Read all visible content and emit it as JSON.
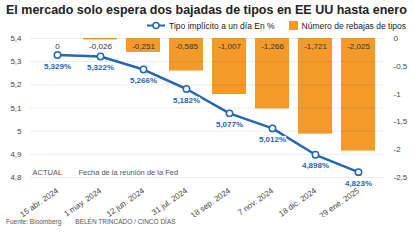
{
  "chart_data": {
    "type": "bar",
    "title": "El mercado solo espera dos bajadas de tipos en EE UU hasta enero",
    "categories": [
      "15 abr. 2024",
      "1 may. 2024",
      "12 jun. 2024",
      "31 jul. 2024",
      "18 sep. 2024",
      "7 nov. 2024",
      "18 dic. 2024",
      "29 ene. 2025"
    ],
    "x_label": "Fecha de la reunión de la Fed",
    "annotations": [
      "ACTUAL"
    ],
    "source": "Fuente: Bloomberg",
    "credit": "BELÉN TRINCADO / CINCO DÍAS",
    "legend": "top",
    "grid": true,
    "data_labels": true,
    "series": [
      {
        "name": "Tipo implícito a un día En %",
        "type": "line",
        "color": "#2467b3",
        "marker": "circle",
        "values": [
          5.329,
          5.322,
          5.266,
          5.182,
          5.077,
          5.012,
          4.898,
          4.823
        ],
        "value_labels": [
          "5,329%",
          "5,322%",
          "5,266%",
          "5,182%",
          "5,077%",
          "5,012%",
          "4,898%",
          "4,823%"
        ]
      },
      {
        "name": "Número de rebajas de tipos",
        "type": "bar",
        "axis": "y2",
        "color": "#f39a2b",
        "values": [
          0,
          -0.026,
          -0.251,
          -0.585,
          -1.007,
          -1.266,
          -1.721,
          -2.025
        ],
        "value_labels": [
          "0",
          "-0,026",
          "-0,251",
          "-0,585",
          "-1,007",
          "-1,266",
          "-1,721",
          "-2,025"
        ]
      }
    ],
    "ylim": [
      4.8,
      5.4
    ],
    "yticks": [
      {
        "value": 4.8,
        "label": "4,8"
      },
      {
        "value": 4.9,
        "label": "4,9"
      },
      5,
      {
        "value": 5.1,
        "label": "5,1"
      },
      {
        "value": 5.2,
        "label": "5,2"
      },
      {
        "value": 5.3,
        "label": "5,3"
      },
      {
        "value": 5.4,
        "label": "5,4"
      }
    ],
    "y2lim": [
      -2.5,
      0
    ],
    "y2ticks": [
      {
        "value": -2.5,
        "label": "-2,5"
      },
      -2,
      {
        "value": -1.5,
        "label": "-1,5"
      },
      -1,
      {
        "value": -0.5,
        "label": "-0,5"
      },
      0
    ]
  }
}
